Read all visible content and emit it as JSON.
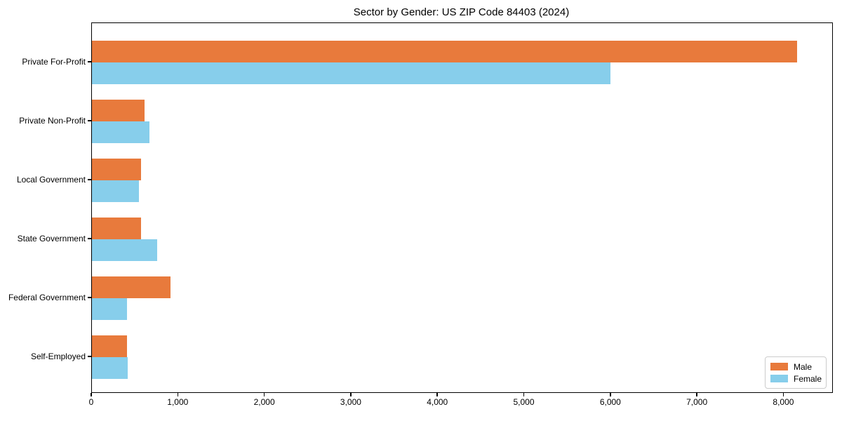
{
  "chart_data": {
    "type": "bar",
    "orientation": "horizontal",
    "title": "Sector by Gender: US ZIP Code 84403 (2024)",
    "categories": [
      "Private For-Profit",
      "Private Non-Profit",
      "Local Government",
      "State Government",
      "Federal Government",
      "Self-Employed"
    ],
    "series": [
      {
        "name": "Male",
        "color": "#e87a3c",
        "values": [
          8150,
          610,
          565,
          570,
          910,
          405
        ]
      },
      {
        "name": "Female",
        "color": "#87ceeb",
        "values": [
          5990,
          665,
          540,
          750,
          405,
          415
        ]
      }
    ],
    "xlabel": "",
    "ylabel": "",
    "xlim": [
      0,
      8556
    ],
    "x_ticks": [
      0,
      1000,
      2000,
      3000,
      4000,
      5000,
      6000,
      7000,
      8000
    ],
    "x_tick_labels": [
      "0",
      "1,000",
      "2,000",
      "3,000",
      "4,000",
      "5,000",
      "6,000",
      "7,000",
      "8,000"
    ],
    "grid": false,
    "legend": {
      "position": "lower right",
      "items": [
        {
          "label": "Male",
          "color": "#e87a3c"
        },
        {
          "label": "Female",
          "color": "#87ceeb"
        }
      ]
    }
  }
}
